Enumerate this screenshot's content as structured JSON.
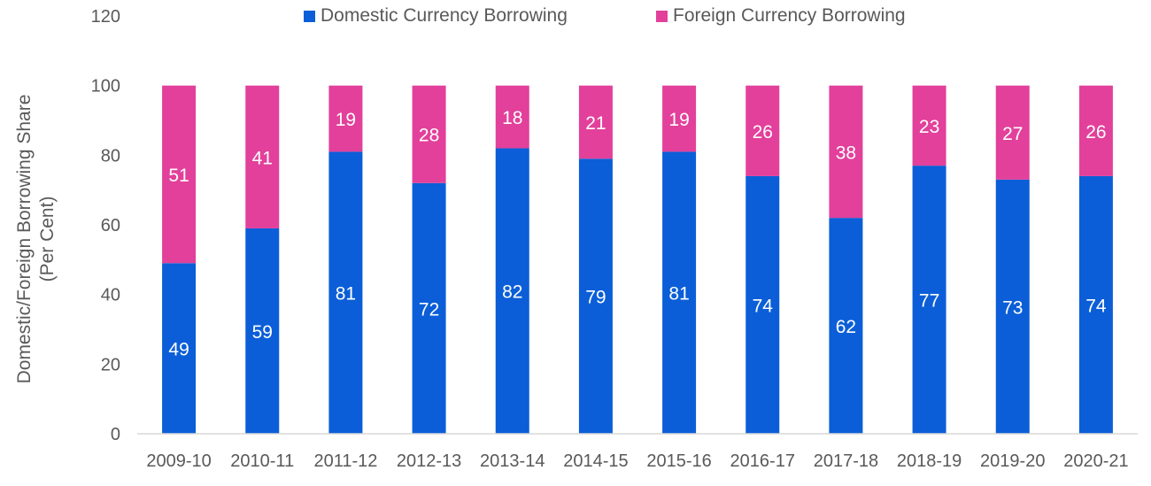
{
  "chart_data": {
    "type": "bar",
    "stacked": true,
    "categories": [
      "2009-10",
      "2010-11",
      "2011-12",
      "2012-13",
      "2013-14",
      "2014-15",
      "2015-16",
      "2016-17",
      "2017-18",
      "2018-19",
      "2019-20",
      "2020-21"
    ],
    "series": [
      {
        "name": "Domestic Currency Borrowing",
        "color": "#0b5ed7",
        "values": [
          49,
          59,
          81,
          72,
          82,
          79,
          81,
          74,
          62,
          77,
          73,
          74
        ]
      },
      {
        "name": "Foreign Currency Borrowing",
        "color": "#e2409b",
        "values": [
          51,
          41,
          19,
          28,
          18,
          21,
          19,
          26,
          38,
          23,
          27,
          26
        ]
      }
    ],
    "title": "",
    "xlabel": "",
    "ylabel": "Domestic/Foreign Borrowing Share\n(Per Cent)",
    "ylabel_lines": [
      "Domestic/Foreign Borrowing Share",
      "(Per Cent)"
    ],
    "ylim": [
      0,
      120
    ],
    "yticks": [
      0,
      20,
      40,
      60,
      80,
      100,
      120
    ],
    "grid": false,
    "legend_position": "top-center",
    "data_labels": true
  }
}
